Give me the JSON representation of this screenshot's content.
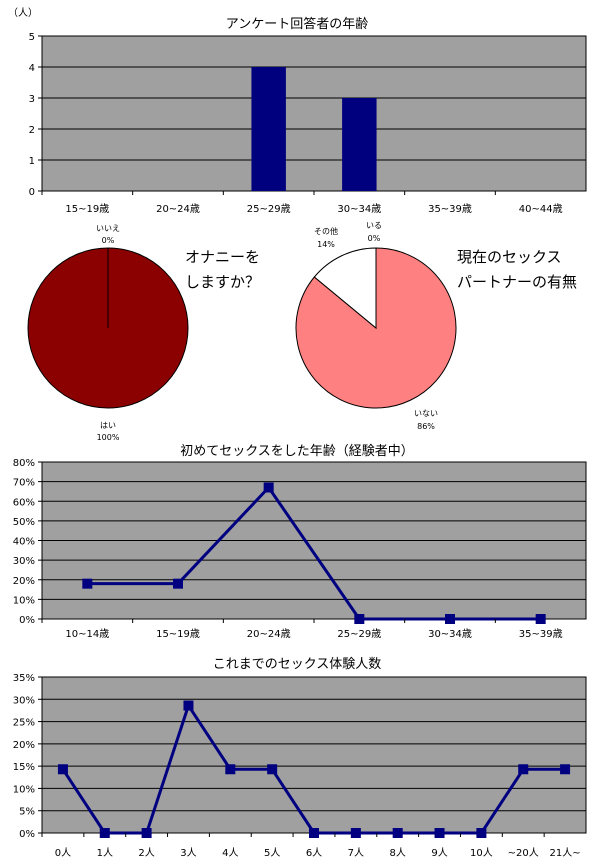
{
  "chart_data": [
    {
      "id": "age",
      "type": "bar",
      "title": "アンケート回答者の年齢",
      "ylabel": "（人）",
      "categories": [
        "15~19歳",
        "20~24歳",
        "25~29歳",
        "30~34歳",
        "35~39歳",
        "40~44歳"
      ],
      "values": [
        0,
        0,
        4,
        3,
        0,
        0
      ],
      "ylim": [
        0,
        5
      ],
      "yticks": [
        "0",
        "1",
        "2",
        "3",
        "4",
        "5"
      ],
      "grid": true,
      "colors": {
        "plot_bg": "#a0a0a0",
        "bar": "#00007f"
      }
    },
    {
      "id": "masturbation",
      "type": "pie",
      "question_lines": [
        "オナニーを",
        "しますか？"
      ],
      "slices": [
        {
          "label": "はい",
          "pct_text": "100%",
          "value": 100,
          "color": "#8b0000"
        },
        {
          "label": "いいえ",
          "pct_text": "0%",
          "value": 0,
          "color": "#8b0000"
        }
      ]
    },
    {
      "id": "partner",
      "type": "pie",
      "question_lines": [
        "現在のセックス",
        "パートナーの有無"
      ],
      "slices": [
        {
          "label": "いない",
          "pct_text": "86%",
          "value": 86,
          "color": "#ff8080"
        },
        {
          "label": "その他",
          "pct_text": "14%",
          "value": 14,
          "color": "#ffffff"
        },
        {
          "label": "いる",
          "pct_text": "0%",
          "value": 0,
          "color": "#ffffff"
        }
      ]
    },
    {
      "id": "first_sex_age",
      "type": "line",
      "title": "初めてセックスをした年齢（経験者中）",
      "categories": [
        "10~14歳",
        "15~19歳",
        "20~24歳",
        "25~29歳",
        "30~34歳",
        "35~39歳"
      ],
      "values": [
        18,
        18,
        67,
        0,
        0,
        0
      ],
      "ylim": [
        0,
        80
      ],
      "yticks": [
        "0%",
        "10%",
        "20%",
        "30%",
        "40%",
        "50%",
        "60%",
        "70%",
        "80%"
      ],
      "grid": true,
      "colors": {
        "plot_bg": "#a0a0a0",
        "line": "#000080"
      }
    },
    {
      "id": "experience_count",
      "type": "line",
      "title": "これまでのセックス体験人数",
      "categories": [
        "0人",
        "1人",
        "2人",
        "3人",
        "4人",
        "5人",
        "6人",
        "7人",
        "8人",
        "9人",
        "10人",
        "~20人",
        "21人~"
      ],
      "values": [
        14.3,
        0,
        0,
        28.6,
        14.3,
        14.3,
        0,
        0,
        0,
        0,
        0,
        14.3,
        14.3
      ],
      "ylim": [
        0,
        35
      ],
      "yticks": [
        "0%",
        "5%",
        "10%",
        "15%",
        "20%",
        "25%",
        "30%",
        "35%"
      ],
      "grid": true,
      "colors": {
        "plot_bg": "#a0a0a0",
        "line": "#000080"
      }
    }
  ]
}
